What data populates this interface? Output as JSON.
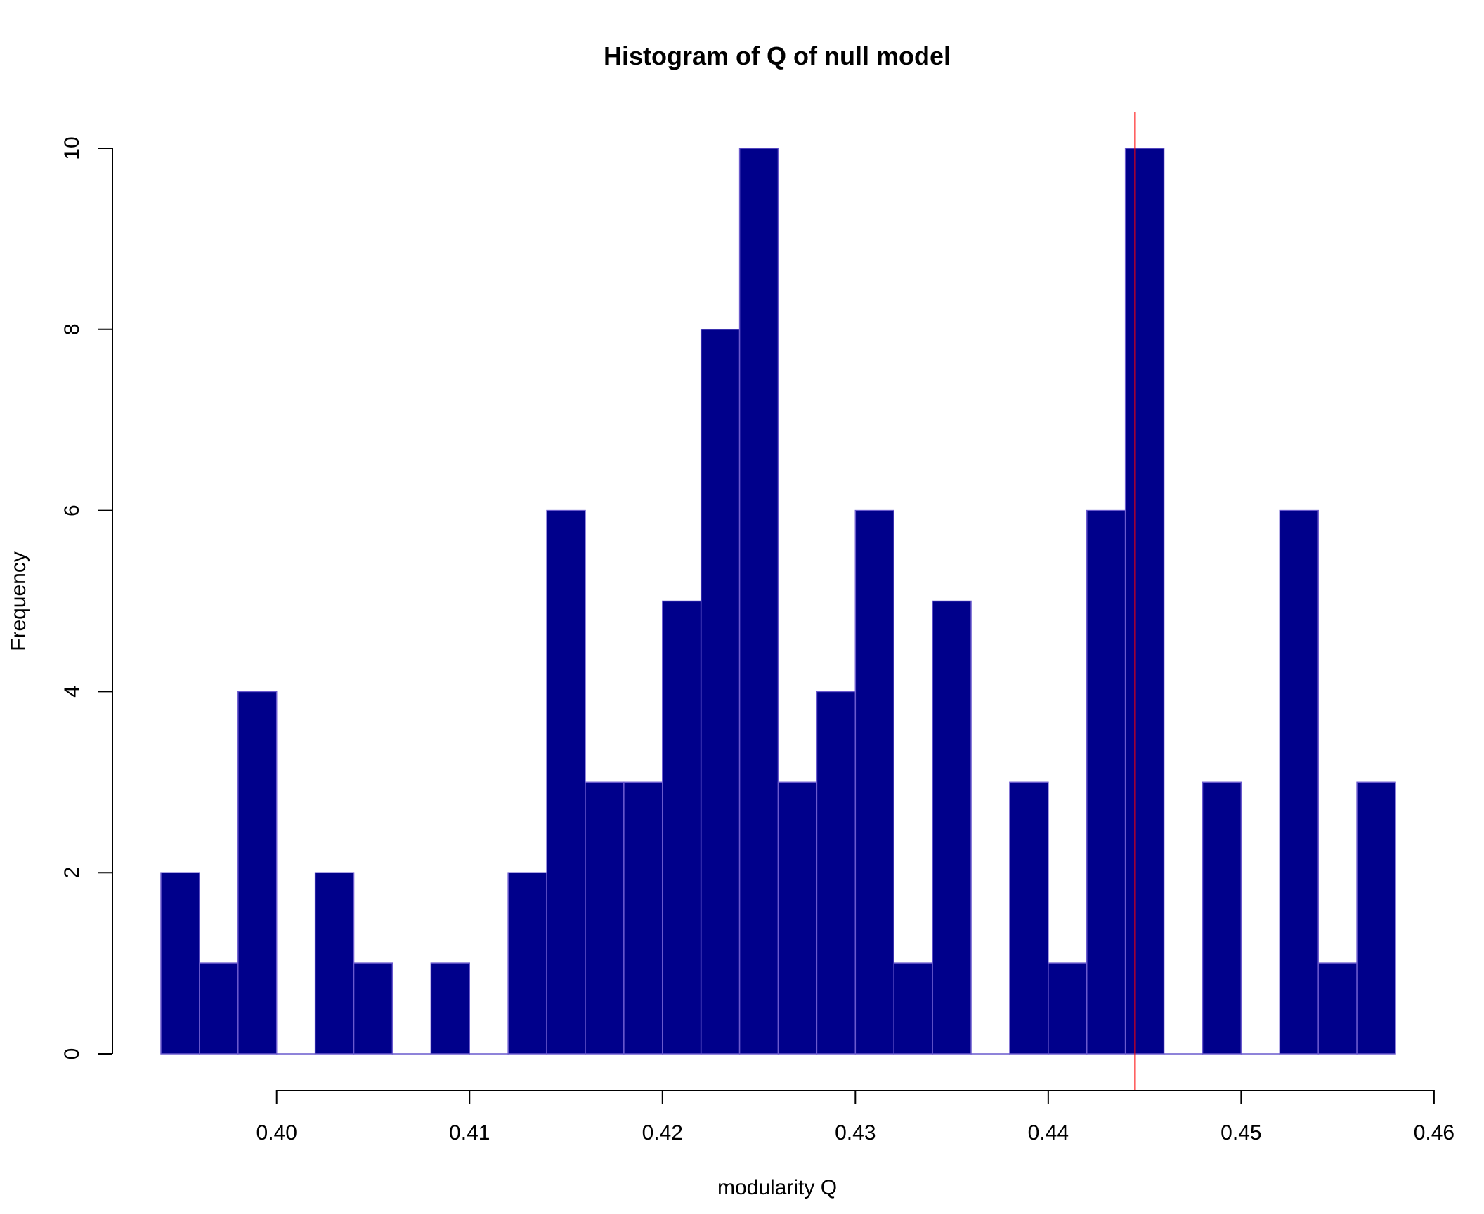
{
  "chart_data": {
    "type": "bar",
    "title": "Histogram of Q of null model",
    "xlabel": "modularity Q",
    "ylabel": "Frequency",
    "bin_width": 0.002,
    "bin_start": 0.394,
    "values": [
      2,
      1,
      4,
      0,
      2,
      1,
      0,
      1,
      0,
      2,
      6,
      3,
      3,
      5,
      8,
      10,
      3,
      4,
      6,
      1,
      5,
      0,
      3,
      1,
      6,
      10,
      0,
      3,
      0,
      6,
      1,
      3
    ],
    "xlim": [
      0.394,
      0.458
    ],
    "ylim": [
      0,
      10
    ],
    "x_ticks": [
      "0.40",
      "0.41",
      "0.42",
      "0.43",
      "0.44",
      "0.45",
      "0.46"
    ],
    "x_tick_values": [
      0.4,
      0.41,
      0.42,
      0.43,
      0.44,
      0.45,
      0.46
    ],
    "y_ticks": [
      "0",
      "2",
      "4",
      "6",
      "8",
      "10"
    ],
    "y_tick_values": [
      0,
      2,
      4,
      6,
      8,
      10
    ],
    "reference_line_x": 0.4445,
    "colors": {
      "bar_fill": "#00008B",
      "bar_border": "#6A5ACD",
      "reference_line": "#FF0000",
      "axis": "#000000"
    },
    "grid": false
  }
}
